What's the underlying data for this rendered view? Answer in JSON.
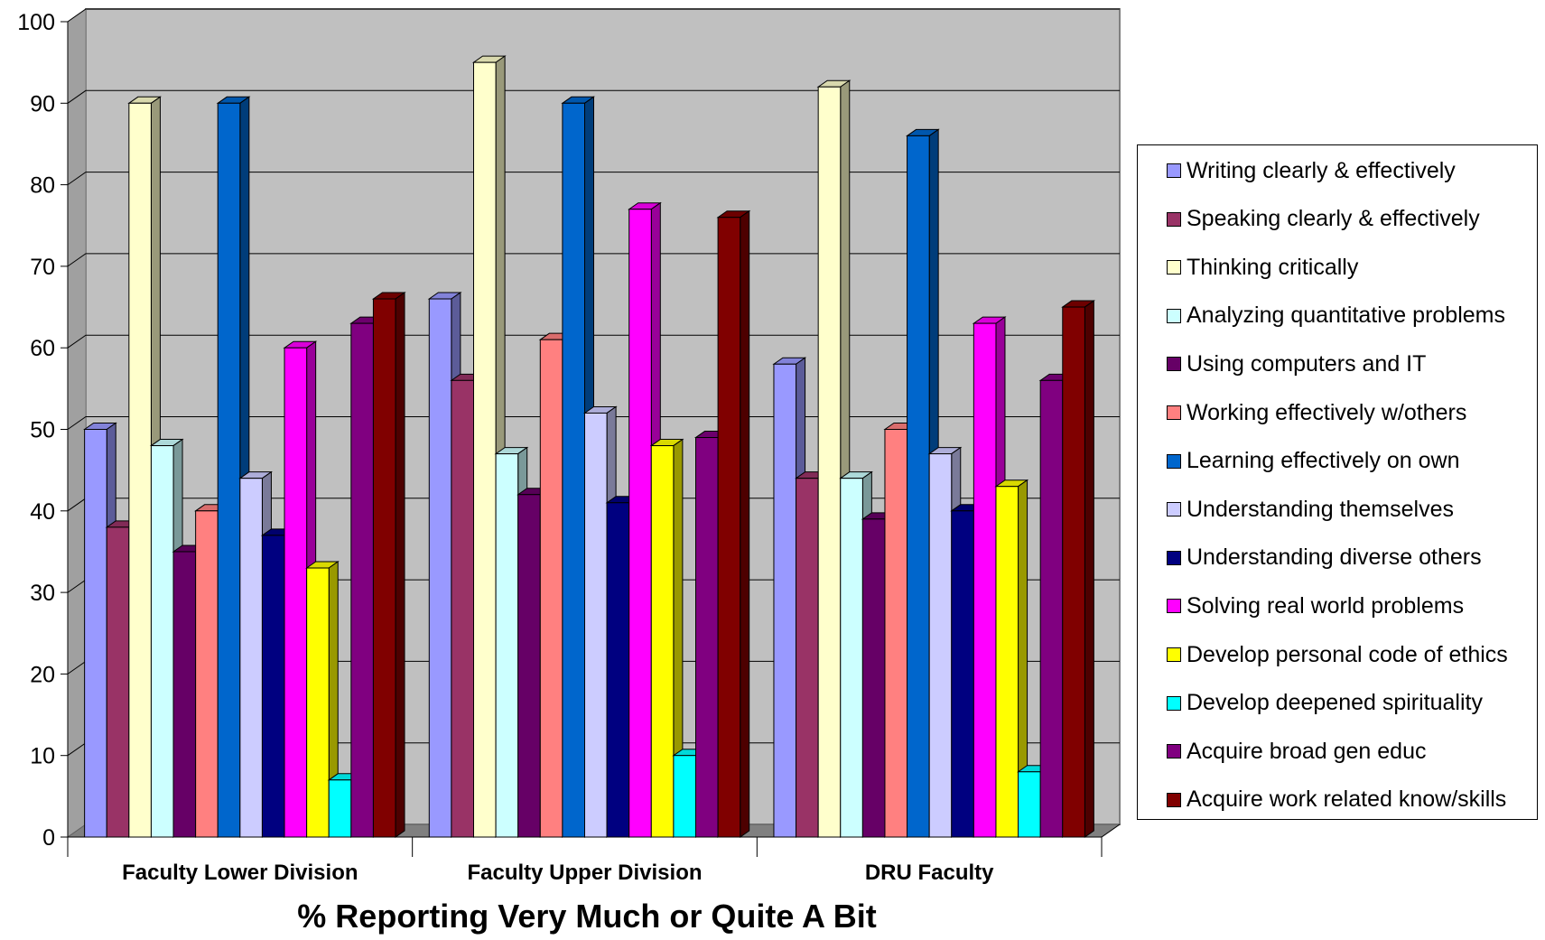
{
  "chart_data": {
    "type": "bar",
    "title": "",
    "xlabel": "% Reporting Very Much or Quite A Bit",
    "ylabel": "",
    "ylim": [
      0,
      100
    ],
    "yticks": [
      "0",
      "10",
      "20",
      "30",
      "40",
      "50",
      "60",
      "70",
      "80",
      "90",
      "100"
    ],
    "grid": true,
    "legend_position": "right",
    "categories": [
      "Faculty Lower Division",
      "Faculty Upper Division",
      "DRU Faculty"
    ],
    "series": [
      {
        "name": "Writing clearly & effectively",
        "color": "#9999FF",
        "values": [
          50,
          66,
          58
        ]
      },
      {
        "name": "Speaking clearly & effectively",
        "color": "#993366",
        "values": [
          38,
          56,
          44
        ]
      },
      {
        "name": "Thinking critically",
        "color": "#FFFFCC",
        "values": [
          90,
          95,
          92
        ]
      },
      {
        "name": "Analyzing quantitative problems",
        "color": "#CCFFFF",
        "values": [
          48,
          47,
          44
        ]
      },
      {
        "name": "Using computers and IT",
        "color": "#660066",
        "values": [
          35,
          42,
          39
        ]
      },
      {
        "name": "Working effectively w/others",
        "color": "#FF8080",
        "values": [
          40,
          61,
          50
        ]
      },
      {
        "name": "Learning effectively on own",
        "color": "#0066CC",
        "values": [
          90,
          90,
          86
        ]
      },
      {
        "name": "Understanding themselves",
        "color": "#CCCCFF",
        "values": [
          44,
          52,
          47
        ]
      },
      {
        "name": "Understanding diverse others",
        "color": "#000080",
        "values": [
          37,
          41,
          40
        ]
      },
      {
        "name": "Solving real world problems",
        "color": "#FF00FF",
        "values": [
          60,
          77,
          63
        ]
      },
      {
        "name": "Develop personal code of ethics",
        "color": "#FFFF00",
        "values": [
          33,
          48,
          43
        ]
      },
      {
        "name": "Develop deepened spirituality",
        "color": "#00FFFF",
        "values": [
          7,
          10,
          8
        ]
      },
      {
        "name": "Acquire broad gen educ",
        "color": "#800080",
        "values": [
          63,
          49,
          56
        ]
      },
      {
        "name": "Acquire work related know/skills",
        "color": "#800000",
        "values": [
          66,
          76,
          65
        ]
      }
    ]
  }
}
